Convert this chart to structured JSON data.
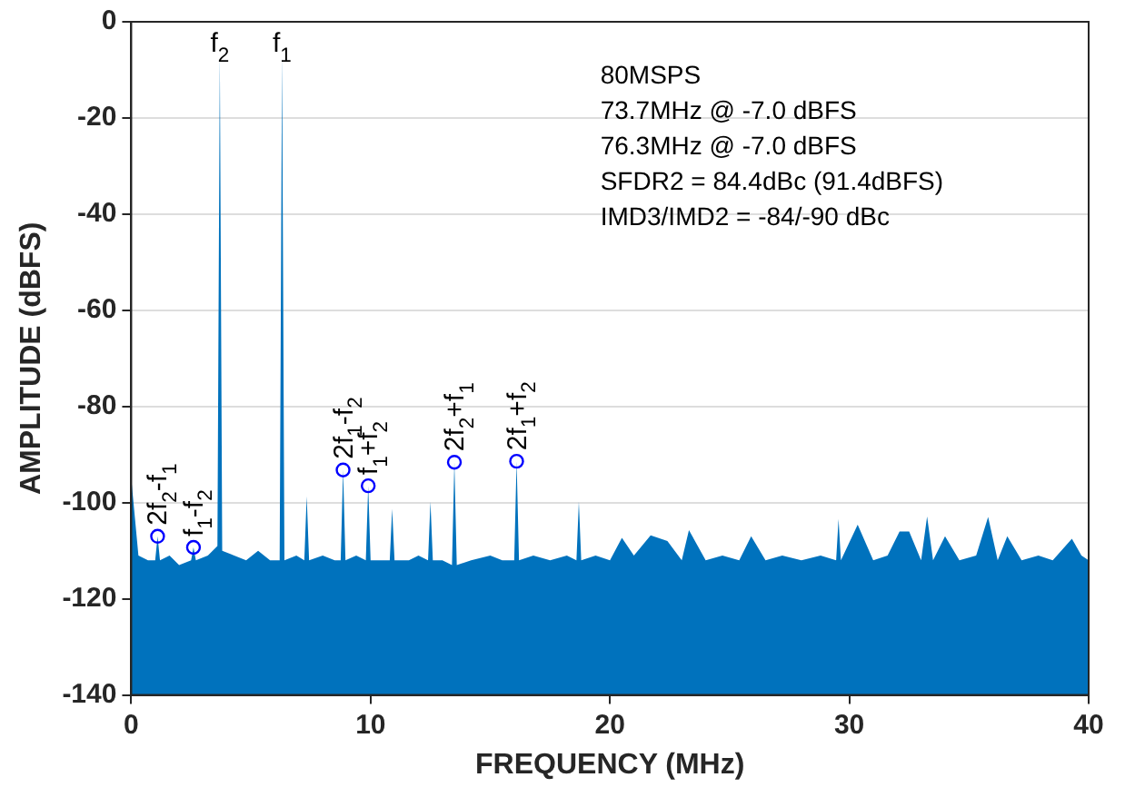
{
  "chart_data": {
    "type": "area",
    "xlabel": "FREQUENCY (MHz)",
    "ylabel": "AMPLITUDE (dBFS)",
    "xlim": [
      0,
      40
    ],
    "xticks": [
      0,
      10,
      20,
      30,
      40
    ],
    "ylim": [
      -140,
      0
    ],
    "yticks": [
      -140,
      -120,
      -100,
      -80,
      -60,
      -40,
      -20,
      0
    ],
    "grid": "y",
    "legend": false,
    "series": [
      {
        "color": "#0072bd",
        "x": [
          0,
          0,
          0.3,
          0.7,
          1.0,
          1.1,
          1.2,
          1.6,
          2.0,
          2.5,
          2.6,
          2.7,
          3.2,
          3.6,
          3.7,
          3.8,
          4.3,
          4.8,
          5.3,
          5.8,
          6.2,
          6.3,
          6.4,
          6.9,
          7.23,
          7.33,
          7.43,
          8.0,
          8.5,
          8.75,
          8.85,
          8.95,
          9.4,
          9.8,
          9.9,
          10.0,
          10.5,
          10.8,
          10.9,
          11.0,
          11.6,
          12.0,
          12.4,
          12.5,
          12.6,
          13.0,
          13.4,
          13.5,
          13.6,
          14.2,
          15.0,
          15.5,
          16.0,
          16.1,
          16.2,
          16.8,
          17.5,
          18.2,
          18.6,
          18.7,
          18.8,
          19.4,
          20.0,
          20.5,
          21.0,
          21.7,
          22.4,
          23.0,
          23.3,
          24.0,
          24.7,
          25.4,
          25.9,
          26.5,
          27.2,
          28.0,
          28.8,
          29.45,
          29.55,
          29.65,
          30.35,
          31.0,
          31.6,
          32.1,
          32.5,
          33.0,
          33.25,
          33.5,
          34.0,
          34.6,
          35.3,
          35.8,
          36.2,
          36.6,
          37.2,
          37.9,
          38.5,
          39.3,
          39.7,
          40,
          40
        ],
        "values": [
          -140,
          -95,
          -111,
          -112,
          -112,
          -107,
          -112,
          -111,
          -113,
          -112,
          -109.3,
          -112,
          -111,
          -109,
          -7,
          -110,
          -111,
          -112,
          -110,
          -112,
          -112,
          -7,
          -112,
          -111,
          -112,
          -98.7,
          -112,
          -111,
          -112,
          -112,
          -93.2,
          -112,
          -111,
          -112,
          -96.5,
          -112,
          -112,
          -112,
          -101.3,
          -112,
          -112,
          -111,
          -112,
          -99.8,
          -112,
          -112,
          -113,
          -91.6,
          -113,
          -112,
          -111,
          -112,
          -112,
          -91.4,
          -112,
          -111,
          -112,
          -111,
          -112,
          -99.8,
          -112,
          -111,
          -112,
          -107.3,
          -111,
          -106.8,
          -108,
          -112,
          -105.7,
          -112,
          -111,
          -112,
          -107,
          -112,
          -111,
          -112,
          -111,
          -112,
          -103.4,
          -112,
          -104.6,
          -112,
          -111,
          -106,
          -106,
          -112,
          -102.9,
          -112,
          -107,
          -112,
          -111,
          -103,
          -112,
          -107,
          -112,
          -111,
          -112,
          -107.5,
          -111,
          -112,
          -140
        ]
      },
      {
        "type": "scatter",
        "color": "#0000ff",
        "marker": "circle",
        "x": [
          1.1,
          2.6,
          8.85,
          9.9,
          13.5,
          16.1
        ],
        "values": [
          -107,
          -109.3,
          -93.2,
          -96.5,
          -91.6,
          -91.4
        ]
      }
    ],
    "annotations": [
      {
        "text": "f$_{2}$",
        "x": 3.7,
        "y": -7
      },
      {
        "text": "f$_{1}$",
        "x": 6.3,
        "y": -7
      },
      {
        "text": "2f$_{2}$-f$_{1}$",
        "x": 1.1,
        "y": -107
      },
      {
        "text": "f$_{1}$-f$_{2}$",
        "x": 2.6,
        "y": -109.3
      },
      {
        "text": "2f$_{1}$-f$_{2}$",
        "x": 8.85,
        "y": -93.2
      },
      {
        "text": "f$_{1}$+f$_{2}$",
        "x": 9.9,
        "y": -96.5
      },
      {
        "text": "2f$_{2}$+f$_{1}$",
        "x": 13.5,
        "y": -91.6
      },
      {
        "text": "2f$_{1}$+f$_{2}$",
        "x": 16.1,
        "y": -91.4
      },
      "80MSPS",
      "73.7MHz @ -7.0 dBFS",
      "76.3MHz @ -7.0 dBFS",
      "SFDR2 = 84.4dBc (91.4dBFS)",
      "IMD3/IMD2 = -84/-90 dBc"
    ]
  }
}
